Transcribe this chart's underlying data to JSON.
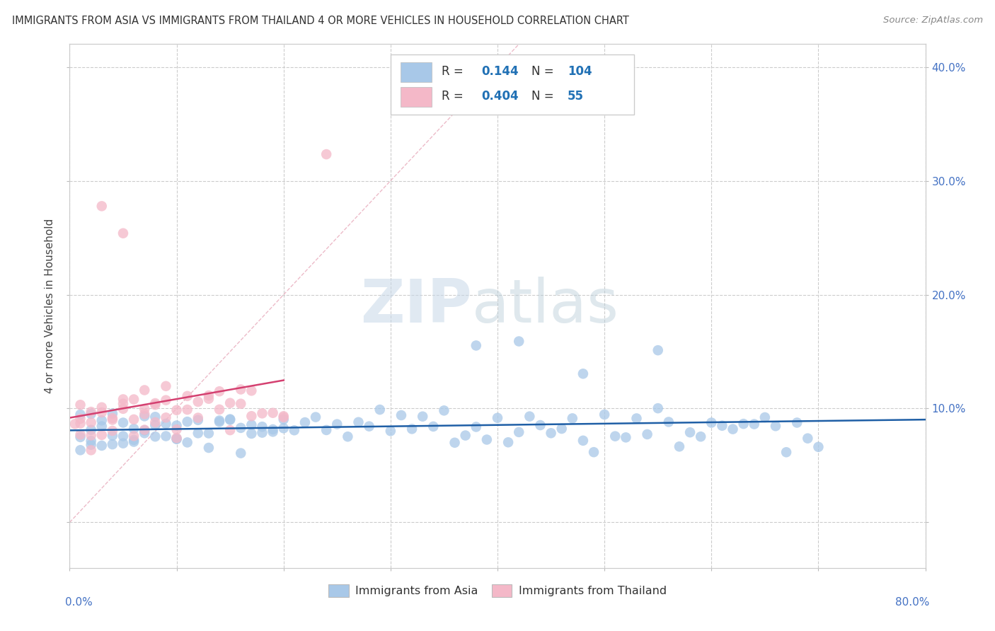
{
  "title": "IMMIGRANTS FROM ASIA VS IMMIGRANTS FROM THAILAND 4 OR MORE VEHICLES IN HOUSEHOLD CORRELATION CHART",
  "source": "Source: ZipAtlas.com",
  "ylabel": "4 or more Vehicles in Household",
  "blue_color": "#a8c8e8",
  "pink_color": "#f4b8c8",
  "blue_line_color": "#1f5fa6",
  "pink_line_color": "#d44070",
  "diag_color": "#e0a0b0",
  "R_asia": 0.144,
  "N_asia": 104,
  "R_thailand": 0.404,
  "N_thailand": 55,
  "watermark_zip": "ZIP",
  "watermark_atlas": "atlas",
  "xlim": [
    0.0,
    0.8
  ],
  "ylim": [
    -0.04,
    0.42
  ],
  "x_ticks": [
    0.0,
    0.1,
    0.2,
    0.3,
    0.4,
    0.5,
    0.6,
    0.7,
    0.8
  ],
  "y_ticks": [
    0.0,
    0.1,
    0.2,
    0.3,
    0.4
  ],
  "y_tick_labels": [
    "",
    "10.0%",
    "20.0%",
    "30.0%",
    "40.0%"
  ]
}
